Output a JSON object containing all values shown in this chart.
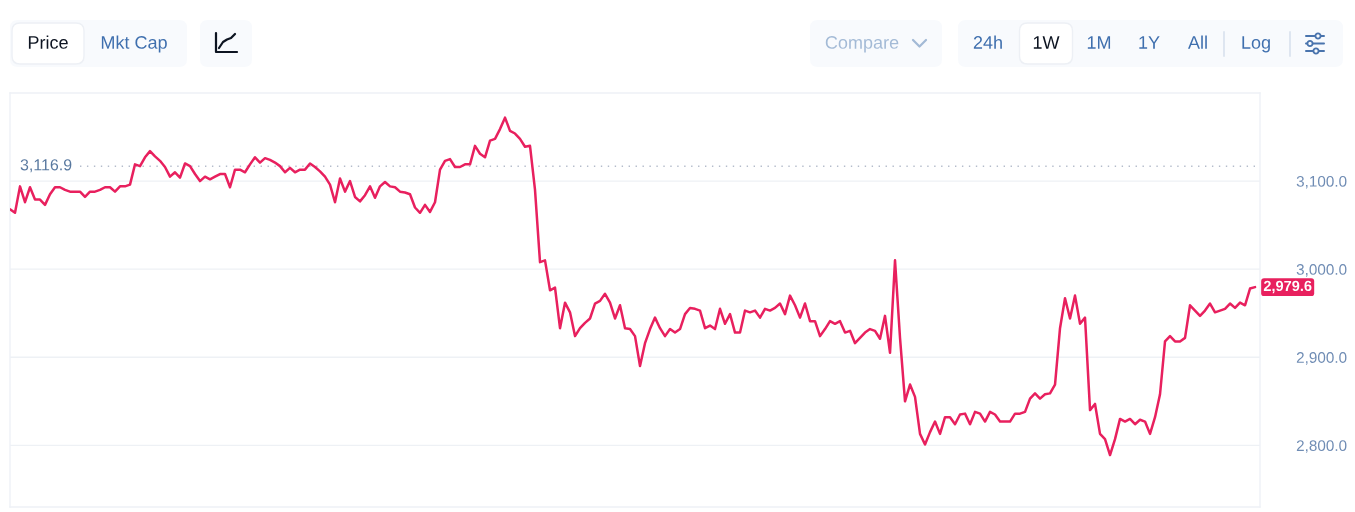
{
  "chart_data": {
    "type": "line",
    "categories": [
      null,
      null,
      null,
      null,
      null,
      null,
      null,
      null,
      null,
      null,
      null,
      null,
      null,
      null,
      null,
      null,
      null,
      null,
      null,
      null,
      null,
      null,
      null,
      null,
      null,
      null,
      null,
      null,
      null,
      null,
      null,
      null,
      null,
      null,
      null,
      null,
      null,
      null,
      null,
      null,
      null,
      null,
      null,
      null,
      null,
      null,
      null,
      null,
      null,
      null,
      null,
      null,
      null,
      null,
      null,
      null,
      null,
      null,
      null,
      null,
      null,
      null,
      null,
      null,
      null,
      null,
      null,
      null,
      null,
      null,
      null,
      null,
      null,
      null,
      null,
      null,
      null,
      null,
      null,
      null,
      null,
      null,
      null,
      null,
      null,
      null,
      null,
      null,
      null,
      null,
      null,
      null,
      null,
      null,
      null,
      null,
      null,
      null,
      null,
      null,
      null,
      null,
      null,
      null,
      null,
      null,
      null,
      null,
      null,
      null,
      null,
      null,
      null,
      null,
      null,
      null,
      null,
      null,
      null,
      null,
      null,
      null,
      null,
      null,
      null,
      null,
      null,
      null,
      null,
      null,
      null,
      null,
      null,
      null,
      null,
      null,
      null,
      null,
      null,
      null,
      null,
      null,
      null,
      null,
      null,
      null,
      null,
      null,
      null,
      null,
      null,
      null,
      null,
      null,
      null,
      null,
      null,
      null,
      null,
      null,
      null,
      null,
      null,
      null,
      null,
      null,
      null,
      null,
      null,
      null,
      null,
      null,
      null,
      null,
      null,
      null,
      null,
      null,
      null,
      null,
      null,
      null,
      null,
      null,
      null,
      null,
      null,
      null,
      null,
      null,
      null,
      null,
      null,
      null,
      null,
      null,
      null,
      null,
      null,
      null,
      null,
      null,
      null,
      null,
      null,
      null,
      null,
      null,
      null,
      null,
      null,
      null,
      null,
      null,
      null,
      null,
      null,
      null,
      null,
      null,
      null,
      null,
      null,
      null,
      null,
      null,
      null,
      null,
      null,
      null,
      null,
      null,
      null,
      null,
      null,
      null,
      null,
      null,
      null,
      null,
      null,
      null,
      null,
      null,
      null,
      null,
      null,
      null,
      null,
      null
    ],
    "series": [
      {
        "color": "#e8205e",
        "values": [
          3068,
          3064,
          3094,
          3076,
          3093,
          3079,
          3079,
          3073,
          3085,
          3093,
          3093,
          3090,
          3088,
          3088,
          3088,
          3082,
          3088,
          3088,
          3090,
          3093,
          3093,
          3088,
          3094,
          3094,
          3096,
          3119,
          3117,
          3127,
          3134,
          3128,
          3123,
          3116,
          3105,
          3110,
          3104,
          3120,
          3117,
          3108,
          3100,
          3105,
          3102,
          3105,
          3108,
          3108,
          3093,
          3113,
          3113,
          3110,
          3119,
          3127,
          3121,
          3126,
          3124,
          3121,
          3117,
          3110,
          3115,
          3110,
          3113,
          3113,
          3120,
          3116,
          3111,
          3105,
          3096,
          3076,
          3103,
          3088,
          3100,
          3082,
          3077,
          3084,
          3094,
          3081,
          3094,
          3099,
          3094,
          3093,
          3088,
          3087,
          3085,
          3070,
          3064,
          3073,
          3065,
          3076,
          3113,
          3123,
          3125,
          3116,
          3116,
          3119,
          3119,
          3140,
          3131,
          3127,
          3146,
          3148,
          3159,
          3172,
          3157,
          3154,
          3148,
          3139,
          3140,
          3090,
          3008,
          3010,
          2976,
          2979,
          2933,
          2962,
          2951,
          2924,
          2933,
          2939,
          2944,
          2961,
          2964,
          2972,
          2962,
          2944,
          2959,
          2933,
          2932,
          2924,
          2890,
          2916,
          2932,
          2945,
          2933,
          2924,
          2932,
          2928,
          2932,
          2949,
          2956,
          2955,
          2953,
          2933,
          2936,
          2932,
          2955,
          2938,
          2949,
          2928,
          2928,
          2953,
          2951,
          2953,
          2945,
          2955,
          2953,
          2956,
          2961,
          2949,
          2970,
          2959,
          2945,
          2961,
          2941,
          2941,
          2924,
          2932,
          2941,
          2938,
          2941,
          2928,
          2930,
          2916,
          2922,
          2928,
          2932,
          2930,
          2921,
          2947,
          2905,
          3010,
          2922,
          2850,
          2869,
          2855,
          2813,
          2801,
          2815,
          2827,
          2813,
          2832,
          2832,
          2824,
          2835,
          2836,
          2824,
          2838,
          2836,
          2827,
          2838,
          2835,
          2827,
          2827,
          2827,
          2836,
          2836,
          2838,
          2853,
          2859,
          2853,
          2858,
          2859,
          2869,
          2933,
          2967,
          2944,
          2970,
          2938,
          2945,
          2840,
          2847,
          2813,
          2807,
          2789,
          2807,
          2830,
          2827,
          2830,
          2824,
          2829,
          2827,
          2813,
          2832,
          2858,
          2918,
          2924,
          2918,
          2918,
          2922,
          2959,
          2953,
          2947,
          2953,
          2961,
          2951,
          2953,
          2955,
          2961,
          2956,
          2962,
          2959,
          2978,
          2979.6
        ],
        "value_labels": [
          null,
          null,
          null,
          null,
          null,
          null,
          null,
          null,
          null,
          null,
          null,
          null,
          null,
          null,
          null,
          null,
          null,
          null,
          null,
          null,
          null,
          null,
          null,
          null,
          null,
          null,
          null,
          null,
          null,
          null,
          null,
          null,
          null,
          null,
          null,
          null,
          null,
          null,
          null,
          null,
          null,
          null,
          null,
          null,
          null,
          null,
          null,
          null,
          null,
          null,
          null,
          null,
          null,
          null,
          null,
          null,
          null,
          null,
          null,
          null,
          null,
          null,
          null,
          null,
          null,
          null,
          null,
          null,
          null,
          null,
          null,
          null,
          null,
          null,
          null,
          null,
          null,
          null,
          null,
          null,
          null,
          null,
          null,
          null,
          null,
          null,
          null,
          null,
          null,
          null,
          null,
          null,
          null,
          null,
          null,
          null,
          null,
          null,
          null,
          null,
          null,
          null,
          null,
          null,
          null,
          null,
          null,
          null,
          null,
          null,
          null,
          null,
          null,
          null,
          null,
          null,
          null,
          null,
          null,
          null,
          null,
          null,
          null,
          null,
          null,
          null,
          null,
          null,
          null,
          null,
          null,
          null,
          null,
          null,
          null,
          null,
          null,
          null,
          null,
          null,
          null,
          null,
          null,
          null,
          null,
          null,
          null,
          null,
          null,
          null,
          null,
          null,
          null,
          null,
          null,
          null,
          null,
          null,
          null,
          null,
          null,
          null,
          null,
          null,
          null,
          null,
          null,
          null,
          null,
          null,
          null,
          null,
          null,
          null,
          null,
          null,
          null,
          null,
          null,
          null,
          null,
          null,
          null,
          null,
          null,
          null,
          null,
          null,
          null,
          null,
          null,
          null,
          null,
          null,
          null,
          null,
          null,
          null,
          null,
          null,
          null,
          null,
          null,
          null,
          null,
          null,
          null,
          null,
          null,
          null,
          null,
          null,
          null,
          null,
          null,
          null,
          null,
          null,
          null,
          null,
          null,
          null,
          null,
          null,
          null,
          null,
          null,
          null,
          null,
          null,
          null,
          null,
          null,
          null,
          null,
          null,
          null,
          null,
          null,
          null,
          null,
          null,
          null,
          null,
          null,
          null,
          null,
          null,
          null,
          "2,979.6"
        ]
      }
    ],
    "ylim": [
      2730,
      3200
    ],
    "yticks": [
      {
        "value": 2800,
        "label": "2,800.0"
      },
      {
        "value": 2900,
        "label": "2,900.0"
      },
      {
        "value": 3000,
        "label": "3,000.0"
      },
      {
        "value": 3100,
        "label": "3,100.0"
      }
    ],
    "ref_lines": [
      {
        "axis": "y",
        "value": 3116.9,
        "label": "3,116.9",
        "color": "#b4bccb",
        "line_style": "dotted"
      }
    ],
    "grid": "y",
    "tick_labels": "y",
    "annotations": [
      "Price",
      "Mkt Cap",
      "Compare",
      "24h",
      "1W",
      "1M",
      "1Y",
      "All",
      "Log"
    ]
  }
}
